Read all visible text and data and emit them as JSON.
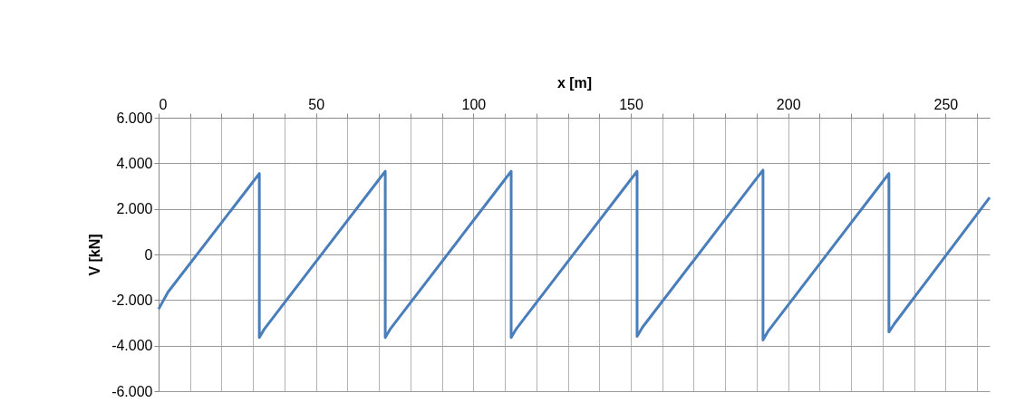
{
  "chart_data": {
    "type": "line",
    "xlabel": "x [m]",
    "ylabel": "V [kN]",
    "xlim": [
      0,
      264
    ],
    "ylim": [
      -6000,
      6000
    ],
    "xticks": [
      0,
      {
        "value": 10,
        "label": null
      },
      {
        "value": 20,
        "label": null
      },
      {
        "value": 30,
        "label": null
      },
      {
        "value": 40,
        "label": null
      },
      50,
      {
        "value": 60,
        "label": null
      },
      {
        "value": 70,
        "label": null
      },
      {
        "value": 80,
        "label": null
      },
      {
        "value": 90,
        "label": null
      },
      100,
      {
        "value": 110,
        "label": null
      },
      {
        "value": 120,
        "label": null
      },
      {
        "value": 130,
        "label": null
      },
      {
        "value": 140,
        "label": null
      },
      150,
      {
        "value": 160,
        "label": null
      },
      {
        "value": 170,
        "label": null
      },
      {
        "value": 180,
        "label": null
      },
      {
        "value": 190,
        "label": null
      },
      200,
      {
        "value": 210,
        "label": null
      },
      {
        "value": 220,
        "label": null
      },
      {
        "value": 230,
        "label": null
      },
      {
        "value": 240,
        "label": null
      },
      250,
      {
        "value": 260,
        "label": null
      }
    ],
    "yticks": [
      {
        "value": -6000,
        "label": "-6.000"
      },
      {
        "value": -4000,
        "label": "-4.000"
      },
      {
        "value": -2000,
        "label": "-2.000"
      },
      0,
      {
        "value": 2000,
        "label": "2.000"
      },
      {
        "value": 4000,
        "label": "4.000"
      },
      {
        "value": 6000,
        "label": "6.000"
      }
    ],
    "grid": true,
    "marker": "none",
    "line_style": "solid",
    "series": [
      {
        "color": "#4a7ebb",
        "x": [
          0,
          3,
          29.5,
          32,
          32,
          33.7,
          69.5,
          72,
          72,
          73.7,
          109.5,
          112,
          112,
          113.7,
          149.5,
          152,
          152,
          153.7,
          189.5,
          192,
          192,
          193.7,
          229.5,
          232,
          232,
          233.7,
          264
        ],
        "values": [
          -2400,
          -1650,
          3100,
          3550,
          -3650,
          -3250,
          3200,
          3650,
          -3650,
          -3250,
          3200,
          3650,
          -3650,
          -3250,
          3200,
          3650,
          -3600,
          -3200,
          3250,
          3700,
          -3750,
          -3350,
          3100,
          3550,
          -3400,
          -3050,
          2500
        ]
      }
    ]
  }
}
